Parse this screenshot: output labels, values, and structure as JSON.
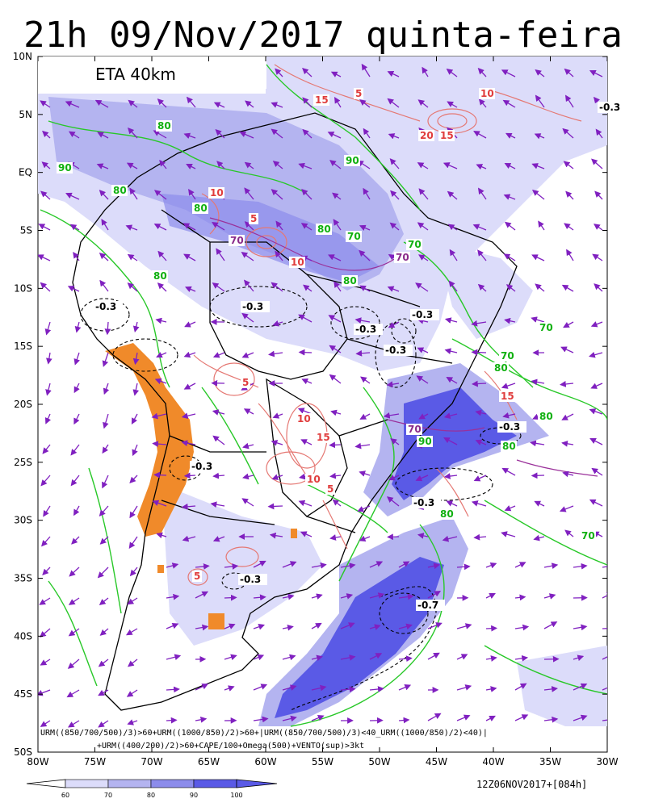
{
  "title": "21h 09/Nov/2017 quinta-feira",
  "model_label": "ETA 40km",
  "criteria_line1": "URM((850/700/500)/3)>60+URM((1000/850)/2)>60+|URM((850/700/500)/3)<40_URM((1000/850)/2)<40)|",
  "criteria_line2": "+URM((400/200)/2)>60+CAPE/100+Omega(500)+VENTO(sup)>3kt",
  "run_label": "12Z06NOV2017+[084h]",
  "lat_labels": [
    "10N",
    "5N",
    "EQ",
    "5S",
    "10S",
    "15S",
    "20S",
    "25S",
    "30S",
    "35S",
    "40S",
    "45S",
    "50S"
  ],
  "lon_labels": [
    "80W",
    "75W",
    "70W",
    "65W",
    "60W",
    "55W",
    "50W",
    "45W",
    "40W",
    "35W",
    "30W"
  ],
  "colorbar_labels": [
    "60",
    "70",
    "80",
    "90",
    "100"
  ],
  "colors": {
    "shade_60": "#dcdcfa",
    "shade_70": "#b4b4f0",
    "shade_80": "#8c8ceb",
    "shade_90": "#5a5ae6",
    "cape": "#e57873",
    "humidity_contour": "#28c828",
    "omega": "#000000",
    "wind": "#8020c0",
    "upper_humidity": "#9a309a",
    "terrain": "#f08a2a"
  },
  "contour_labels": [
    {
      "text": "80",
      "color": "green"
    },
    {
      "text": "90",
      "color": "green"
    },
    {
      "text": "80",
      "color": "green"
    },
    {
      "text": "80",
      "color": "green"
    },
    {
      "text": "80",
      "color": "green"
    },
    {
      "text": "70",
      "color": "green"
    },
    {
      "text": "70",
      "color": "green"
    },
    {
      "text": "80",
      "color": "green"
    },
    {
      "text": "90",
      "color": "green"
    },
    {
      "text": "80",
      "color": "green"
    },
    {
      "text": "70",
      "color": "green"
    },
    {
      "text": "80",
      "color": "green"
    },
    {
      "text": "90",
      "color": "green"
    },
    {
      "text": "80",
      "color": "green"
    },
    {
      "text": "70",
      "color": "green"
    },
    {
      "text": "80",
      "color": "green"
    },
    {
      "text": "70",
      "color": "green"
    },
    {
      "text": "80",
      "color": "green"
    },
    {
      "text": "-0.3",
      "color": "black"
    },
    {
      "text": "-0.3",
      "color": "black"
    },
    {
      "text": "-0.3",
      "color": "black"
    },
    {
      "text": "-0.3",
      "color": "black"
    },
    {
      "text": "-0.3",
      "color": "black"
    },
    {
      "text": "-0.3",
      "color": "black"
    },
    {
      "text": "-0.3",
      "color": "black"
    },
    {
      "text": "-0.3",
      "color": "black"
    },
    {
      "text": "-0.3",
      "color": "black"
    },
    {
      "text": "-0.7",
      "color": "black"
    },
    {
      "text": "5",
      "color": "red"
    },
    {
      "text": "10",
      "color": "red"
    },
    {
      "text": "15",
      "color": "red"
    },
    {
      "text": "20",
      "color": "red"
    },
    {
      "text": "15",
      "color": "red"
    },
    {
      "text": "10",
      "color": "red"
    },
    {
      "text": "5",
      "color": "red"
    },
    {
      "text": "10",
      "color": "red"
    },
    {
      "text": "5",
      "color": "red"
    },
    {
      "text": "10",
      "color": "red"
    },
    {
      "text": "15",
      "color": "red"
    },
    {
      "text": "10",
      "color": "red"
    },
    {
      "text": "5",
      "color": "red"
    },
    {
      "text": "5",
      "color": "red"
    },
    {
      "text": "15",
      "color": "red"
    },
    {
      "text": "70",
      "color": "purple"
    },
    {
      "text": "70",
      "color": "purple"
    },
    {
      "text": "70",
      "color": "purple"
    },
    {
      "text": "-0.3",
      "color": "black"
    }
  ]
}
